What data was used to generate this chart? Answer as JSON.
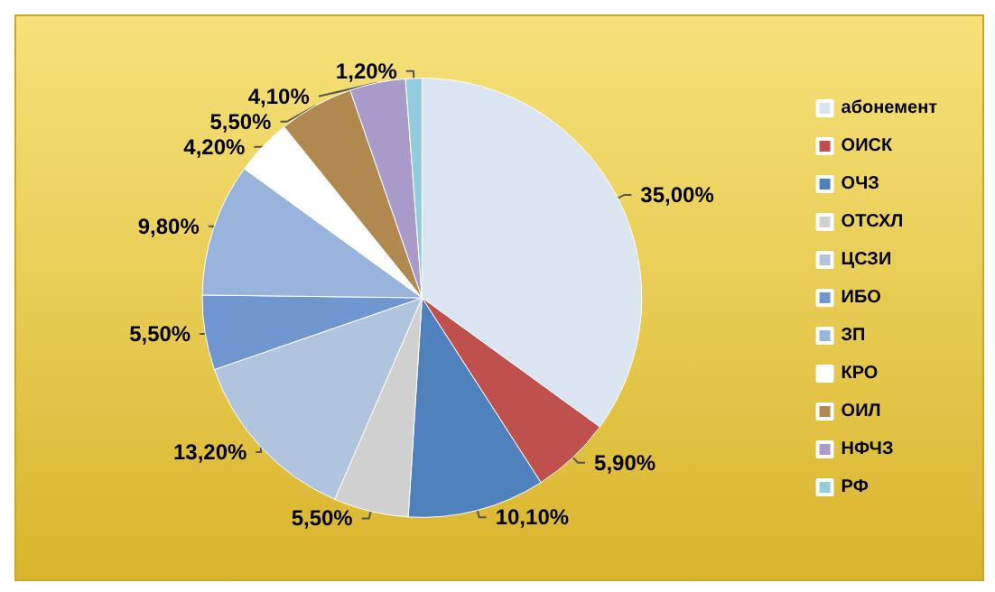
{
  "chart_data": {
    "type": "pie",
    "categories": [
      "абонемент",
      "ОИСК",
      "ОЧЗ",
      "ОТСХЛ",
      "ЦСЗИ",
      "ИБО",
      "ЗП",
      "КРО",
      "ОИЛ",
      "НФЧЗ",
      "РФ"
    ],
    "values": [
      35.0,
      5.9,
      10.1,
      5.5,
      13.2,
      5.5,
      9.8,
      4.2,
      5.5,
      4.1,
      1.2
    ],
    "value_labels": [
      "35,00%",
      "5,90%",
      "10,10%",
      "5,50%",
      "13,20%",
      "5,50%",
      "9,80%",
      "4,20%",
      "5,50%",
      "4,10%",
      "1,20%"
    ],
    "colors": [
      "#dbe5f1",
      "#c0504d",
      "#4f81bd",
      "#d0d0d0",
      "#b0c4de",
      "#7096d0",
      "#98b4dc",
      "#ffffff",
      "#b08850",
      "#a99bc9",
      "#93cddd"
    ],
    "legend": "right"
  }
}
